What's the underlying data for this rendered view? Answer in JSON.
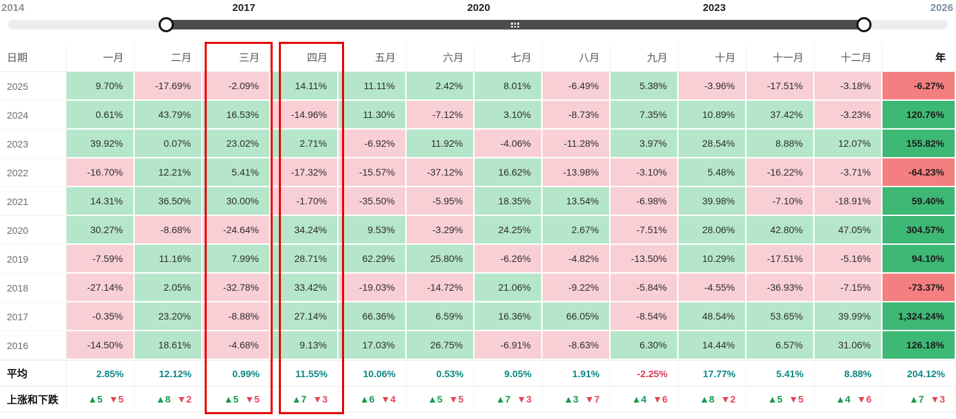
{
  "timeline": {
    "labels": {
      "start": "2014",
      "t1": "2017",
      "t2": "2020",
      "t3": "2023",
      "end": "2026"
    },
    "selected_range": [
      2016,
      2025
    ],
    "track_color": "#4c4c4c",
    "rail_color": "#ededed"
  },
  "table": {
    "header": [
      "日期",
      "一月",
      "二月",
      "三月",
      "四月",
      "五月",
      "六月",
      "七月",
      "八月",
      "九月",
      "十月",
      "十一月",
      "十二月",
      "年"
    ],
    "rows": [
      {
        "label": "2025",
        "values": [
          "9.70%",
          "-17.69%",
          "-2.09%",
          "14.11%",
          "11.11%",
          "2.42%",
          "8.01%",
          "-6.49%",
          "5.38%",
          "-3.96%",
          "-17.51%",
          "-3.18%"
        ],
        "year": "-6.27%"
      },
      {
        "label": "2024",
        "values": [
          "0.61%",
          "43.79%",
          "16.53%",
          "-14.96%",
          "11.30%",
          "-7.12%",
          "3.10%",
          "-8.73%",
          "7.35%",
          "10.89%",
          "37.42%",
          "-3.23%"
        ],
        "year": "120.76%"
      },
      {
        "label": "2023",
        "values": [
          "39.92%",
          "0.07%",
          "23.02%",
          "2.71%",
          "-6.92%",
          "11.92%",
          "-4.06%",
          "-11.28%",
          "3.97%",
          "28.54%",
          "8.88%",
          "12.07%"
        ],
        "year": "155.82%"
      },
      {
        "label": "2022",
        "values": [
          "-16.70%",
          "12.21%",
          "5.41%",
          "-17.32%",
          "-15.57%",
          "-37.12%",
          "16.62%",
          "-13.98%",
          "-3.10%",
          "5.48%",
          "-16.22%",
          "-3.71%"
        ],
        "year": "-64.23%"
      },
      {
        "label": "2021",
        "values": [
          "14.31%",
          "36.50%",
          "30.00%",
          "-1.70%",
          "-35.50%",
          "-5.95%",
          "18.35%",
          "13.54%",
          "-6.98%",
          "39.98%",
          "-7.10%",
          "-18.91%"
        ],
        "year": "59.40%"
      },
      {
        "label": "2020",
        "values": [
          "30.27%",
          "-8.68%",
          "-24.64%",
          "34.24%",
          "9.53%",
          "-3.29%",
          "24.25%",
          "2.67%",
          "-7.51%",
          "28.06%",
          "42.80%",
          "47.05%"
        ],
        "year": "304.57%"
      },
      {
        "label": "2019",
        "values": [
          "-7.59%",
          "11.16%",
          "7.99%",
          "28.71%",
          "62.29%",
          "25.80%",
          "-6.26%",
          "-4.82%",
          "-13.50%",
          "10.29%",
          "-17.51%",
          "-5.16%"
        ],
        "year": "94.10%"
      },
      {
        "label": "2018",
        "values": [
          "-27.14%",
          "2.05%",
          "-32.78%",
          "33.42%",
          "-19.03%",
          "-14.72%",
          "21.06%",
          "-9.22%",
          "-5.84%",
          "-4.55%",
          "-36.93%",
          "-7.15%"
        ],
        "year": "-73.37%"
      },
      {
        "label": "2017",
        "values": [
          "-0.35%",
          "23.20%",
          "-8.88%",
          "27.14%",
          "66.36%",
          "6.59%",
          "16.36%",
          "66.05%",
          "-8.54%",
          "48.54%",
          "53.65%",
          "39.99%"
        ],
        "year": "1,324.24%"
      },
      {
        "label": "2016",
        "values": [
          "-14.50%",
          "18.61%",
          "-4.68%",
          "9.13%",
          "17.03%",
          "26.75%",
          "-6.91%",
          "-8.63%",
          "6.30%",
          "14.44%",
          "6.57%",
          "31.06%"
        ],
        "year": "126.18%"
      }
    ],
    "average": {
      "label": "平均",
      "values": [
        "2.85%",
        "12.12%",
        "0.99%",
        "11.55%",
        "10.06%",
        "0.53%",
        "9.05%",
        "1.91%",
        "-2.25%",
        "17.77%",
        "5.41%",
        "8.88%"
      ],
      "year": "204.12%"
    },
    "updown": {
      "label": "上涨和下跌",
      "values": [
        {
          "up": 5,
          "down": 5
        },
        {
          "up": 8,
          "down": 2
        },
        {
          "up": 5,
          "down": 5
        },
        {
          "up": 7,
          "down": 3
        },
        {
          "up": 6,
          "down": 4
        },
        {
          "up": 5,
          "down": 5
        },
        {
          "up": 7,
          "down": 3
        },
        {
          "up": 3,
          "down": 7
        },
        {
          "up": 4,
          "down": 6
        },
        {
          "up": 8,
          "down": 2
        },
        {
          "up": 5,
          "down": 5
        },
        {
          "up": 4,
          "down": 6
        }
      ],
      "year": {
        "up": 7,
        "down": 3
      },
      "up_glyph": "▲",
      "down_glyph": "▼"
    }
  },
  "highlights": {
    "columns": [
      "三月",
      "四月"
    ],
    "border_color": "#ea0000"
  },
  "colors": {
    "cell_positive": "#b5e6ca",
    "cell_negative": "#f9cfd6",
    "year_positive": "#3eb875",
    "year_negative": "#f47f80",
    "average_positive": "#0a8784",
    "average_negative": "#d63c52",
    "up_green": "#12994d",
    "down_red": "#e34653"
  },
  "chart_data": {
    "type": "heatmap",
    "title": "Monthly returns heatmap with year timeline selector",
    "columns": [
      "一月",
      "二月",
      "三月",
      "四月",
      "五月",
      "六月",
      "七月",
      "八月",
      "九月",
      "十月",
      "十一月",
      "十二月"
    ],
    "rows": [
      "2025",
      "2024",
      "2023",
      "2022",
      "2021",
      "2020",
      "2019",
      "2018",
      "2017",
      "2016"
    ],
    "values": [
      [
        9.7,
        -17.69,
        -2.09,
        14.11,
        11.11,
        2.42,
        8.01,
        -6.49,
        5.38,
        -3.96,
        -17.51,
        -3.18
      ],
      [
        0.61,
        43.79,
        16.53,
        -14.96,
        11.3,
        -7.12,
        3.1,
        -8.73,
        7.35,
        10.89,
        37.42,
        -3.23
      ],
      [
        39.92,
        0.07,
        23.02,
        2.71,
        -6.92,
        11.92,
        -4.06,
        -11.28,
        3.97,
        28.54,
        8.88,
        12.07
      ],
      [
        -16.7,
        12.21,
        5.41,
        -17.32,
        -15.57,
        -37.12,
        16.62,
        -13.98,
        -3.1,
        5.48,
        -16.22,
        -3.71
      ],
      [
        14.31,
        36.5,
        30.0,
        -1.7,
        -35.5,
        -5.95,
        18.35,
        13.54,
        -6.98,
        39.98,
        -7.1,
        -18.91
      ],
      [
        30.27,
        -8.68,
        -24.64,
        34.24,
        9.53,
        -3.29,
        24.25,
        2.67,
        -7.51,
        28.06,
        42.8,
        47.05
      ],
      [
        -7.59,
        11.16,
        7.99,
        28.71,
        62.29,
        25.8,
        -6.26,
        -4.82,
        -13.5,
        10.29,
        -17.51,
        -5.16
      ],
      [
        -27.14,
        2.05,
        -32.78,
        33.42,
        -19.03,
        -14.72,
        21.06,
        -9.22,
        -5.84,
        -4.55,
        -36.93,
        -7.15
      ],
      [
        -0.35,
        23.2,
        -8.88,
        27.14,
        66.36,
        6.59,
        16.36,
        66.05,
        -8.54,
        48.54,
        53.65,
        39.99
      ],
      [
        -14.5,
        18.61,
        -4.68,
        9.13,
        17.03,
        26.75,
        -6.91,
        -8.63,
        6.3,
        14.44,
        6.57,
        31.06
      ]
    ],
    "year_totals": [
      -6.27,
      120.76,
      155.82,
      -64.23,
      59.4,
      304.57,
      94.1,
      -73.37,
      1324.24,
      126.18
    ],
    "average": [
      2.85,
      12.12,
      0.99,
      11.55,
      10.06,
      0.53,
      9.05,
      1.91,
      -2.25,
      17.77,
      5.41,
      8.88
    ],
    "average_year": 204.12,
    "up_down": [
      [
        5,
        5
      ],
      [
        8,
        2
      ],
      [
        5,
        5
      ],
      [
        7,
        3
      ],
      [
        6,
        4
      ],
      [
        5,
        5
      ],
      [
        7,
        3
      ],
      [
        3,
        7
      ],
      [
        4,
        6
      ],
      [
        8,
        2
      ],
      [
        5,
        5
      ],
      [
        4,
        6
      ]
    ],
    "up_down_year": [
      7,
      3
    ],
    "timeline_axis": {
      "min": 2014,
      "max": 2026,
      "ticks": [
        2014,
        2017,
        2020,
        2023,
        2026
      ],
      "selected_range": [
        2016,
        2025
      ]
    }
  }
}
